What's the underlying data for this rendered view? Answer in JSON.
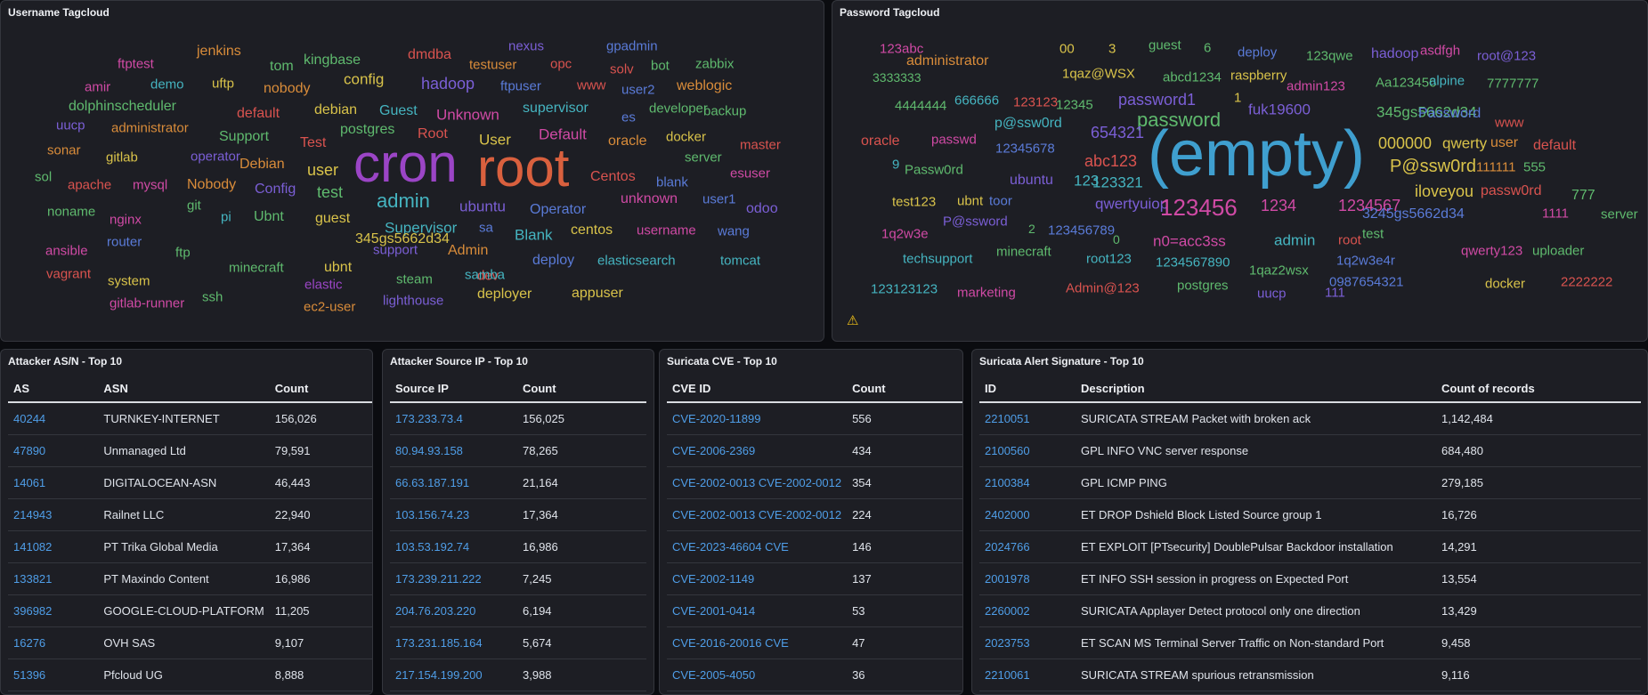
{
  "panels": {
    "username_title": "Username Tagcloud",
    "password_title": "Password Tagcloud",
    "asn_title": "Attacker AS/N - Top 10",
    "srcip_title": "Attacker Source IP - Top 10",
    "cve_title": "Suricata CVE - Top 10",
    "sig_title": "Suricata Alert Signature - Top 10"
  },
  "username_cloud": [
    {
      "text": "ftptest",
      "color": "#d04aa5"
    },
    {
      "text": "jenkins",
      "color": "#d98c3a"
    },
    {
      "text": "tom",
      "color": "#5fba6e"
    },
    {
      "text": "kingbase",
      "color": "#5fba6e"
    },
    {
      "text": "dmdba",
      "color": "#d9534f"
    },
    {
      "text": "nexus",
      "color": "#7b5fd6"
    },
    {
      "text": "gpadmin",
      "color": "#5a7bd8"
    },
    {
      "text": "amir",
      "color": "#d04aa5"
    },
    {
      "text": "demo",
      "color": "#45b4c0"
    },
    {
      "text": "uftp",
      "color": "#d9c34a"
    },
    {
      "text": "nobody",
      "color": "#d98c3a"
    },
    {
      "text": "config",
      "color": "#d9c34a"
    },
    {
      "text": "testuser",
      "color": "#d98c3a"
    },
    {
      "text": "opc",
      "color": "#d9534f"
    },
    {
      "text": "solv",
      "color": "#d9534f"
    },
    {
      "text": "bot",
      "color": "#5fba6e"
    },
    {
      "text": "zabbix",
      "color": "#5fba6e"
    },
    {
      "text": "hadoop",
      "color": "#7b5fd6"
    },
    {
      "text": "ftpuser",
      "color": "#5a7bd8"
    },
    {
      "text": "www",
      "color": "#d9534f"
    },
    {
      "text": "user2",
      "color": "#5a7bd8"
    },
    {
      "text": "weblogic",
      "color": "#d98c3a"
    },
    {
      "text": "dolphinscheduler",
      "color": "#5fba6e"
    },
    {
      "text": "default",
      "color": "#d9534f"
    },
    {
      "text": "debian",
      "color": "#d9c34a"
    },
    {
      "text": "Guest",
      "color": "#45b4c0"
    },
    {
      "text": "Unknown",
      "color": "#d04aa5"
    },
    {
      "text": "supervisor",
      "color": "#45b4c0"
    },
    {
      "text": "developer",
      "color": "#5fba6e"
    },
    {
      "text": "backup",
      "color": "#5fba6e"
    },
    {
      "text": "uucp",
      "color": "#7b5fd6"
    },
    {
      "text": "administrator",
      "color": "#d98c3a"
    },
    {
      "text": "postgres",
      "color": "#5fba6e"
    },
    {
      "text": "es",
      "color": "#5a7bd8"
    },
    {
      "text": "Support",
      "color": "#5fba6e"
    },
    {
      "text": "Test",
      "color": "#d9534f"
    },
    {
      "text": "Root",
      "color": "#d9534f"
    },
    {
      "text": "User",
      "color": "#d9c34a"
    },
    {
      "text": "Default",
      "color": "#d04aa5"
    },
    {
      "text": "oracle",
      "color": "#d98c3a"
    },
    {
      "text": "docker",
      "color": "#d9c34a"
    },
    {
      "text": "master",
      "color": "#d9534f"
    },
    {
      "text": "sonar",
      "color": "#d98c3a"
    },
    {
      "text": "gitlab",
      "color": "#d9c34a"
    },
    {
      "text": "operator",
      "color": "#7b5fd6"
    },
    {
      "text": "server",
      "color": "#5fba6e"
    },
    {
      "text": "cron",
      "color": "#9b45c6"
    },
    {
      "text": "root",
      "color": "#d9603e"
    },
    {
      "text": "Debian",
      "color": "#d98c3a"
    },
    {
      "text": "user",
      "color": "#d9c34a"
    },
    {
      "text": "esuser",
      "color": "#d04aa5"
    },
    {
      "text": "sol",
      "color": "#5fba6e"
    },
    {
      "text": "apache",
      "color": "#d9534f"
    },
    {
      "text": "mysql",
      "color": "#d04aa5"
    },
    {
      "text": "Nobody",
      "color": "#d98c3a"
    },
    {
      "text": "Config",
      "color": "#7b5fd6"
    },
    {
      "text": "Centos",
      "color": "#d9534f"
    },
    {
      "text": "blank",
      "color": "#5a7bd8"
    },
    {
      "text": "test",
      "color": "#5fba6e"
    },
    {
      "text": "admin",
      "color": "#45b4c0"
    },
    {
      "text": "unknown",
      "color": "#d04aa5"
    },
    {
      "text": "user1",
      "color": "#5a7bd8"
    },
    {
      "text": "odoo",
      "color": "#7b5fd6"
    },
    {
      "text": "noname",
      "color": "#5fba6e"
    },
    {
      "text": "git",
      "color": "#5fba6e"
    },
    {
      "text": "ubuntu",
      "color": "#7b5fd6"
    },
    {
      "text": "Operator",
      "color": "#5a7bd8"
    },
    {
      "text": "nginx",
      "color": "#d04aa5"
    },
    {
      "text": "pi",
      "color": "#45b4c0"
    },
    {
      "text": "Ubnt",
      "color": "#5fba6e"
    },
    {
      "text": "guest",
      "color": "#d9c34a"
    },
    {
      "text": "router",
      "color": "#5a7bd8"
    },
    {
      "text": "Supervisor",
      "color": "#45b4c0"
    },
    {
      "text": "sa",
      "color": "#5a7bd8"
    },
    {
      "text": "Blank",
      "color": "#45b4c0"
    },
    {
      "text": "centos",
      "color": "#d9c34a"
    },
    {
      "text": "username",
      "color": "#d04aa5"
    },
    {
      "text": "wang",
      "color": "#5a7bd8"
    },
    {
      "text": "ansible",
      "color": "#d04aa5"
    },
    {
      "text": "ftp",
      "color": "#5fba6e"
    },
    {
      "text": "345gs5662d34",
      "color": "#d9c34a"
    },
    {
      "text": "support",
      "color": "#7b5fd6"
    },
    {
      "text": "Admin",
      "color": "#d98c3a"
    },
    {
      "text": "deploy",
      "color": "#5a7bd8"
    },
    {
      "text": "elasticsearch",
      "color": "#45b4c0"
    },
    {
      "text": "tomcat",
      "color": "#45b4c0"
    },
    {
      "text": "vagrant",
      "color": "#d9534f"
    },
    {
      "text": "minecraft",
      "color": "#5fba6e"
    },
    {
      "text": "ubnt",
      "color": "#d9c34a"
    },
    {
      "text": "dev",
      "color": "#d9534f"
    },
    {
      "text": "system",
      "color": "#d9c34a"
    },
    {
      "text": "elastic",
      "color": "#9b45c6"
    },
    {
      "text": "steam",
      "color": "#5fba6e"
    },
    {
      "text": "samba",
      "color": "#45b4c0"
    },
    {
      "text": "gitlab-runner",
      "color": "#d04aa5"
    },
    {
      "text": "ssh",
      "color": "#5fba6e"
    },
    {
      "text": "ec2-user",
      "color": "#d98c3a"
    },
    {
      "text": "lighthouse",
      "color": "#7b5fd6"
    },
    {
      "text": "deployer",
      "color": "#d9c34a"
    },
    {
      "text": "appuser",
      "color": "#d9c34a"
    }
  ],
  "password_cloud": [
    {
      "text": "123abc",
      "color": "#d04aa5"
    },
    {
      "text": "administrator",
      "color": "#d98c3a"
    },
    {
      "text": "00",
      "color": "#d9c34a"
    },
    {
      "text": "3",
      "color": "#d9c34a"
    },
    {
      "text": "guest",
      "color": "#5fba6e"
    },
    {
      "text": "6",
      "color": "#5fba6e"
    },
    {
      "text": "deploy",
      "color": "#5a7bd8"
    },
    {
      "text": "123qwe",
      "color": "#5fba6e"
    },
    {
      "text": "hadoop",
      "color": "#7b5fd6"
    },
    {
      "text": "asdfgh",
      "color": "#d04aa5"
    },
    {
      "text": "root@123",
      "color": "#7b5fd6"
    },
    {
      "text": "3333333",
      "color": "#5fba6e"
    },
    {
      "text": "1qaz@WSX",
      "color": "#d9c34a"
    },
    {
      "text": "abcd1234",
      "color": "#5fba6e"
    },
    {
      "text": "raspberry",
      "color": "#d9c34a"
    },
    {
      "text": "admin123",
      "color": "#d04aa5"
    },
    {
      "text": "Aa123456",
      "color": "#5fba6e"
    },
    {
      "text": "alpine",
      "color": "#45b4c0"
    },
    {
      "text": "7777777",
      "color": "#5fba6e"
    },
    {
      "text": "4444444",
      "color": "#5fba6e"
    },
    {
      "text": "666666",
      "color": "#45b4c0"
    },
    {
      "text": "123123",
      "color": "#d9534f"
    },
    {
      "text": "12345",
      "color": "#5fba6e"
    },
    {
      "text": "password1",
      "color": "#7b5fd6"
    },
    {
      "text": "1",
      "color": "#d9c34a"
    },
    {
      "text": "fuk19600",
      "color": "#7b5fd6"
    },
    {
      "text": "345gs5662d34",
      "color": "#5fba6e"
    },
    {
      "text": "Password",
      "color": "#5a7bd8"
    },
    {
      "text": "p@ssw0rd",
      "color": "#45b4c0"
    },
    {
      "text": "password",
      "color": "#5fba6e"
    },
    {
      "text": "www",
      "color": "#d9534f"
    },
    {
      "text": "oracle",
      "color": "#d9534f"
    },
    {
      "text": "passwd",
      "color": "#d04aa5"
    },
    {
      "text": "654321",
      "color": "#7b5fd6"
    },
    {
      "text": "(empty)",
      "color": "#3f9fcf"
    },
    {
      "text": "000000",
      "color": "#d9c34a"
    },
    {
      "text": "qwerty",
      "color": "#d9c34a"
    },
    {
      "text": "user",
      "color": "#d98c3a"
    },
    {
      "text": "default",
      "color": "#d9534f"
    },
    {
      "text": "12345678",
      "color": "#5a7bd8"
    },
    {
      "text": "abc123",
      "color": "#d9534f"
    },
    {
      "text": "9",
      "color": "#45b4c0"
    },
    {
      "text": "Passw0rd",
      "color": "#5fba6e"
    },
    {
      "text": "123321",
      "color": "#45b4c0"
    },
    {
      "text": "P@ssw0rd",
      "color": "#d9c34a"
    },
    {
      "text": "111111",
      "color": "#d98c3a"
    },
    {
      "text": "555",
      "color": "#5fba6e"
    },
    {
      "text": "ubuntu",
      "color": "#7b5fd6"
    },
    {
      "text": "123",
      "color": "#45b4c0"
    },
    {
      "text": "iloveyou",
      "color": "#d9c34a"
    },
    {
      "text": "passw0rd",
      "color": "#d9534f"
    },
    {
      "text": "777",
      "color": "#5fba6e"
    },
    {
      "text": "test123",
      "color": "#d9c34a"
    },
    {
      "text": "ubnt",
      "color": "#d9c34a"
    },
    {
      "text": "toor",
      "color": "#5a7bd8"
    },
    {
      "text": "qwertyuiop",
      "color": "#7b5fd6"
    },
    {
      "text": "123456",
      "color": "#d04aa5"
    },
    {
      "text": "1234",
      "color": "#d04aa5"
    },
    {
      "text": "1234567",
      "color": "#d04aa5"
    },
    {
      "text": "P@ssword",
      "color": "#7b5fd6"
    },
    {
      "text": "3245gs5662d34",
      "color": "#5a7bd8"
    },
    {
      "text": "1111",
      "color": "#d04aa5"
    },
    {
      "text": "server",
      "color": "#5fba6e"
    },
    {
      "text": "1q2w3e",
      "color": "#d04aa5"
    },
    {
      "text": "2",
      "color": "#5fba6e"
    },
    {
      "text": "123456789",
      "color": "#5a7bd8"
    },
    {
      "text": "0",
      "color": "#5fba6e"
    },
    {
      "text": "n0=acc3ss",
      "color": "#d04aa5"
    },
    {
      "text": "admin",
      "color": "#45b4c0"
    },
    {
      "text": "root",
      "color": "#d9534f"
    },
    {
      "text": "test",
      "color": "#5fba6e"
    },
    {
      "text": "techsupport",
      "color": "#45b4c0"
    },
    {
      "text": "minecraft",
      "color": "#5fba6e"
    },
    {
      "text": "root123",
      "color": "#45b4c0"
    },
    {
      "text": "1234567890",
      "color": "#45b4c0"
    },
    {
      "text": "1qaz2wsx",
      "color": "#5fba6e"
    },
    {
      "text": "1q2w3e4r",
      "color": "#5a7bd8"
    },
    {
      "text": "qwerty123",
      "color": "#d04aa5"
    },
    {
      "text": "uploader",
      "color": "#5fba6e"
    },
    {
      "text": "123123123",
      "color": "#45b4c0"
    },
    {
      "text": "marketing",
      "color": "#d04aa5"
    },
    {
      "text": "Admin@123",
      "color": "#d9534f"
    },
    {
      "text": "postgres",
      "color": "#5fba6e"
    },
    {
      "text": "0987654321",
      "color": "#5a7bd8"
    },
    {
      "text": "docker",
      "color": "#d9c34a"
    },
    {
      "text": "2222222",
      "color": "#d9534f"
    },
    {
      "text": "uucp",
      "color": "#7b5fd6"
    },
    {
      "text": "111",
      "color": "#7b5fd6"
    }
  ],
  "asn_table": {
    "headers": [
      "AS",
      "ASN",
      "Count"
    ],
    "rows": [
      [
        "40244",
        "TURNKEY-INTERNET",
        "156,026"
      ],
      [
        "47890",
        "Unmanaged Ltd",
        "79,591"
      ],
      [
        "14061",
        "DIGITALOCEAN-ASN",
        "46,443"
      ],
      [
        "214943",
        "Railnet LLC",
        "22,940"
      ],
      [
        "141082",
        "PT Trika Global Media",
        "17,364"
      ],
      [
        "133821",
        "PT Maxindo Content",
        "16,986"
      ],
      [
        "396982",
        "GOOGLE-CLOUD-PLATFORM",
        "11,205"
      ],
      [
        "16276",
        "OVH SAS",
        "9,107"
      ],
      [
        "51396",
        "Pfcloud UG",
        "8,888"
      ]
    ]
  },
  "srcip_table": {
    "headers": [
      "Source IP",
      "Count"
    ],
    "rows": [
      [
        "173.233.73.4",
        "156,025"
      ],
      [
        "80.94.93.158",
        "78,265"
      ],
      [
        "66.63.187.191",
        "21,164"
      ],
      [
        "103.156.74.23",
        "17,364"
      ],
      [
        "103.53.192.74",
        "16,986"
      ],
      [
        "173.239.211.222",
        "7,245"
      ],
      [
        "204.76.203.220",
        "6,194"
      ],
      [
        "173.231.185.164",
        "5,674"
      ],
      [
        "217.154.199.200",
        "3,988"
      ]
    ]
  },
  "cve_table": {
    "headers": [
      "CVE ID",
      "Count"
    ],
    "rows": [
      [
        "CVE-2020-11899",
        "556"
      ],
      [
        "CVE-2006-2369",
        "434"
      ],
      [
        "CVE-2002-0013 CVE-2002-0012",
        "354"
      ],
      [
        "CVE-2002-0013 CVE-2002-0012",
        "224"
      ],
      [
        "CVE-2023-46604 CVE",
        "146"
      ],
      [
        "CVE-2002-1149",
        "137"
      ],
      [
        "CVE-2001-0414",
        "53"
      ],
      [
        "CVE-2016-20016 CVE",
        "47"
      ],
      [
        "CVE-2005-4050",
        "36"
      ]
    ]
  },
  "sig_table": {
    "headers": [
      "ID",
      "Description",
      "Count of records"
    ],
    "rows": [
      [
        "2210051",
        "SURICATA STREAM Packet with broken ack",
        "1,142,484"
      ],
      [
        "2100560",
        "GPL INFO VNC server response",
        "684,480"
      ],
      [
        "2100384",
        "GPL ICMP PING",
        "279,185"
      ],
      [
        "2402000",
        "ET DROP Dshield Block Listed Source group 1",
        "16,726"
      ],
      [
        "2024766",
        "ET EXPLOIT [PTsecurity] DoublePulsar Backdoor installation",
        "14,291"
      ],
      [
        "2001978",
        "ET INFO SSH session in progress on Expected Port",
        "13,554"
      ],
      [
        "2260002",
        "SURICATA Applayer Detect protocol only one direction",
        "13,429"
      ],
      [
        "2023753",
        "ET SCAN MS Terminal Server Traffic on Non-standard Port",
        "9,458"
      ],
      [
        "2210061",
        "SURICATA STREAM spurious retransmission",
        "9,116"
      ]
    ]
  }
}
